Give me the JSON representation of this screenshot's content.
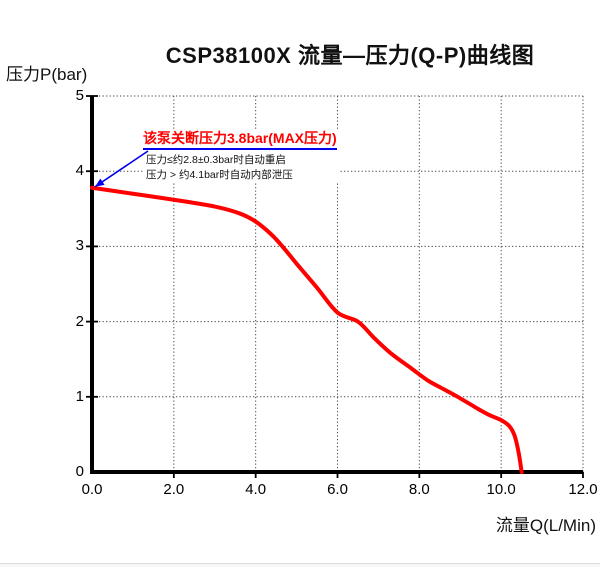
{
  "chart_data": {
    "type": "line",
    "title": "CSP38100X 流量—压力(Q-P)曲线图",
    "xlabel": "流量Q(L/Min)",
    "ylabel": "压力P(bar)",
    "xlim": [
      0,
      12
    ],
    "ylim": [
      0,
      5
    ],
    "xticks": [
      0,
      2,
      4,
      6,
      8,
      10,
      12
    ],
    "xtick_labels": [
      "0.0",
      "2.0",
      "4.0",
      "6.0",
      "8.0",
      "10.0",
      "12.0"
    ],
    "yticks": [
      0,
      1,
      2,
      3,
      4,
      5
    ],
    "ytick_labels": [
      "0",
      "1",
      "2",
      "3",
      "4",
      "5"
    ],
    "grid": true,
    "grid_style": "dotted",
    "grid_color": "#4a4a4a",
    "axis_color": "#000000",
    "legend": "none",
    "series": [
      {
        "name": "Q-P curve",
        "color": "#ff0000",
        "points": [
          [
            0,
            3.78
          ],
          [
            1,
            3.7
          ],
          [
            2,
            3.62
          ],
          [
            3,
            3.53
          ],
          [
            3.6,
            3.44
          ],
          [
            4,
            3.33
          ],
          [
            4.4,
            3.15
          ],
          [
            4.7,
            2.97
          ],
          [
            5,
            2.77
          ],
          [
            5.5,
            2.45
          ],
          [
            6,
            2.12
          ],
          [
            6.5,
            2.0
          ],
          [
            6.9,
            1.78
          ],
          [
            7.3,
            1.58
          ],
          [
            7.8,
            1.38
          ],
          [
            8.2,
            1.22
          ],
          [
            8.6,
            1.1
          ],
          [
            9,
            0.98
          ],
          [
            9.4,
            0.85
          ],
          [
            9.7,
            0.76
          ],
          [
            10,
            0.69
          ],
          [
            10.2,
            0.61
          ],
          [
            10.33,
            0.48
          ],
          [
            10.43,
            0.25
          ],
          [
            10.5,
            0
          ]
        ]
      }
    ],
    "annotation": {
      "headline": "该泵关断压力3.8bar(MAX压力)",
      "note_line_1": "压力≤约2.8±0.3bar时自动重启",
      "note_line_2": "压力 > 约4.1bar时自动内部泄压",
      "headline_color": "#ff0000",
      "arrow_color": "#0000ee",
      "arrow_target": [
        0,
        3.78
      ]
    }
  }
}
